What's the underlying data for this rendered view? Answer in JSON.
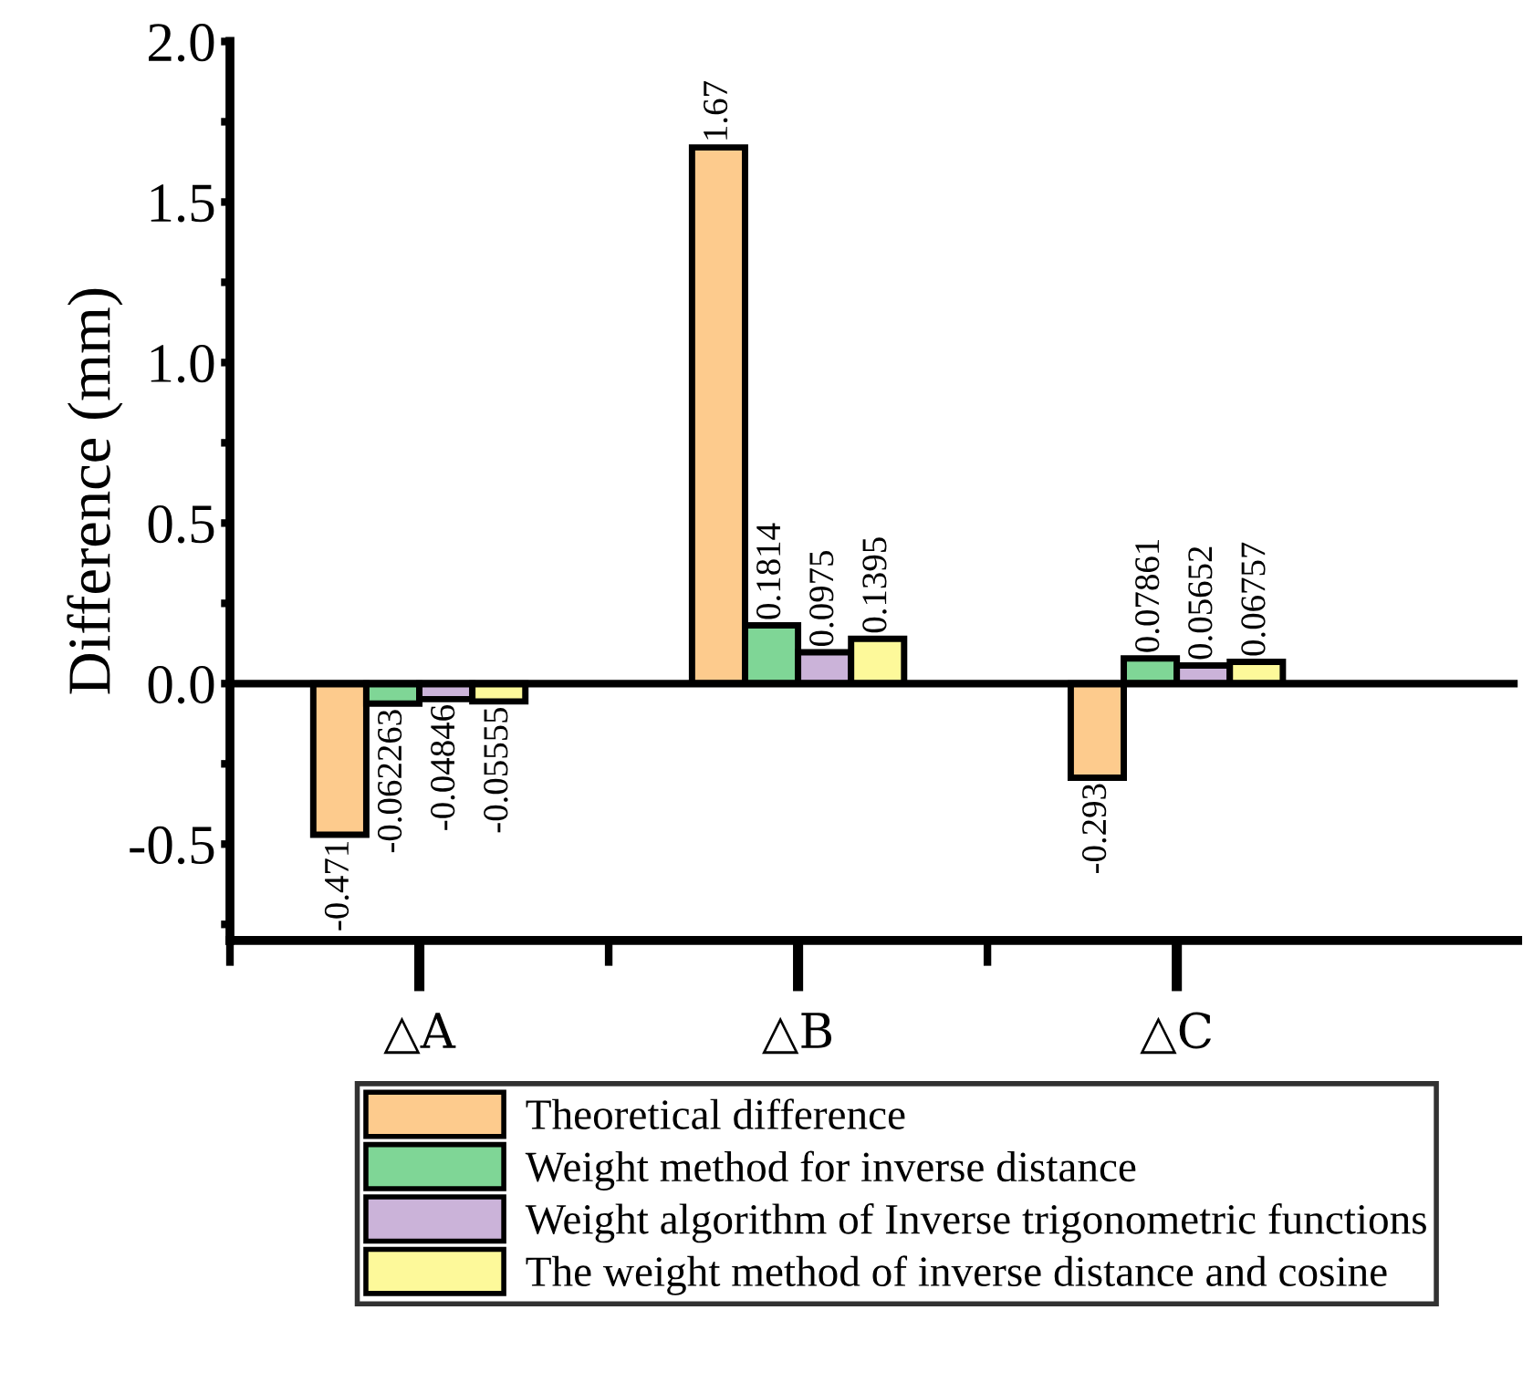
{
  "chart_data": {
    "type": "bar",
    "ylabel": "Difference (mm)",
    "categories": [
      "△A",
      "△B",
      "△C"
    ],
    "series": [
      {
        "name": "Theoretical difference",
        "color": "#fdcb8d",
        "values": [
          -0.471,
          1.67,
          -0.293
        ]
      },
      {
        "name": "Weight method for inverse distance",
        "color": "#7fd696",
        "values": [
          -0.062263,
          0.1814,
          0.07861
        ]
      },
      {
        "name": "Weight algorithm of Inverse trigonometric functions",
        "color": "#cbb3d9",
        "values": [
          -0.04846,
          0.0975,
          0.05652
        ]
      },
      {
        "name": "The weight method of inverse distance and cosine",
        "color": "#fdf99a",
        "values": [
          -0.05555,
          0.1395,
          0.06757
        ]
      }
    ],
    "ylim": [
      -0.8,
      2.0
    ],
    "yticks": [
      {
        "value": -0.75,
        "label": null
      },
      -0.5,
      {
        "value": -0.25,
        "label": null
      },
      {
        "value": 0,
        "label": "0.0"
      },
      {
        "value": 0.25,
        "label": null
      },
      0.5,
      {
        "value": 0.75,
        "label": null
      },
      {
        "value": 1,
        "label": "1.0"
      },
      {
        "value": 1.25,
        "label": null
      },
      1.5,
      {
        "value": 1.75,
        "label": null
      },
      {
        "value": 2,
        "label": "2.0"
      }
    ],
    "ref_lines": [
      {
        "axis": "y",
        "value": 0,
        "label": null
      }
    ],
    "data_labels": true,
    "grid": false,
    "legend": "bottom"
  }
}
